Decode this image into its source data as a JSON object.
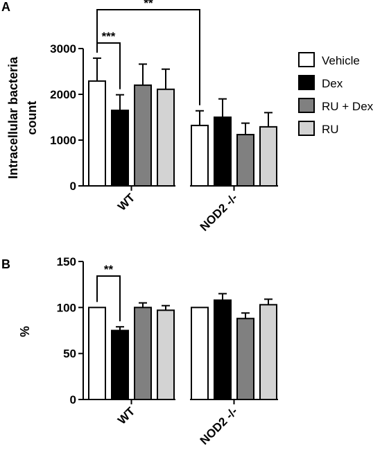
{
  "panels": {
    "a": {
      "letter": "A"
    },
    "b": {
      "letter": "B"
    }
  },
  "legend": {
    "items": [
      {
        "label": "Vehicle",
        "color": "#ffffff"
      },
      {
        "label": "Dex",
        "color": "#000000"
      },
      {
        "label": "RU + Dex",
        "color": "#808080"
      },
      {
        "label": "RU",
        "color": "#d3d3d3"
      }
    ]
  },
  "chart_data": [
    {
      "type": "bar",
      "panel": "A",
      "title": "",
      "xlabel": "",
      "ylabel_lines": [
        "Intracellular bacteria",
        "count"
      ],
      "ylim": [
        0,
        3000
      ],
      "yticks": [
        0,
        1000,
        2000,
        3000
      ],
      "categories": [
        "WT",
        "NOD2 -/-"
      ],
      "series": [
        {
          "name": "Vehicle",
          "color": "#ffffff",
          "values": [
            2290,
            1320
          ],
          "errors": [
            500,
            320
          ]
        },
        {
          "name": "Dex",
          "color": "#000000",
          "values": [
            1650,
            1500
          ],
          "errors": [
            340,
            400
          ]
        },
        {
          "name": "RU + Dex",
          "color": "#808080",
          "values": [
            2200,
            1120
          ],
          "errors": [
            460,
            250
          ]
        },
        {
          "name": "RU",
          "color": "#d3d3d3",
          "values": [
            2110,
            1290
          ],
          "errors": [
            440,
            310
          ]
        }
      ],
      "significance": [
        {
          "label": "***",
          "from": {
            "category": 0,
            "series": 0
          },
          "to": {
            "category": 0,
            "series": 1
          }
        },
        {
          "label": "**",
          "from": {
            "category": 0,
            "series": 0
          },
          "to": {
            "category": 1,
            "series": 0
          }
        }
      ],
      "grid": false,
      "legend_position": "right"
    },
    {
      "type": "bar",
      "panel": "B",
      "title": "",
      "xlabel": "",
      "ylabel_lines": [
        "%"
      ],
      "ylim": [
        0,
        150
      ],
      "yticks": [
        0,
        50,
        100,
        150
      ],
      "categories": [
        "WT",
        "NOD2 -/-"
      ],
      "series": [
        {
          "name": "Vehicle",
          "color": "#ffffff",
          "values": [
            100,
            100
          ],
          "errors": [
            0,
            0
          ]
        },
        {
          "name": "Dex",
          "color": "#000000",
          "values": [
            75,
            108
          ],
          "errors": [
            4,
            7
          ]
        },
        {
          "name": "RU + Dex",
          "color": "#808080",
          "values": [
            100,
            88
          ],
          "errors": [
            5,
            6
          ]
        },
        {
          "name": "RU",
          "color": "#d3d3d3",
          "values": [
            97,
            103
          ],
          "errors": [
            5,
            6
          ]
        }
      ],
      "significance": [
        {
          "label": "**",
          "from": {
            "category": 0,
            "series": 0
          },
          "to": {
            "category": 0,
            "series": 1
          }
        }
      ],
      "grid": false,
      "legend_position": "none"
    }
  ]
}
